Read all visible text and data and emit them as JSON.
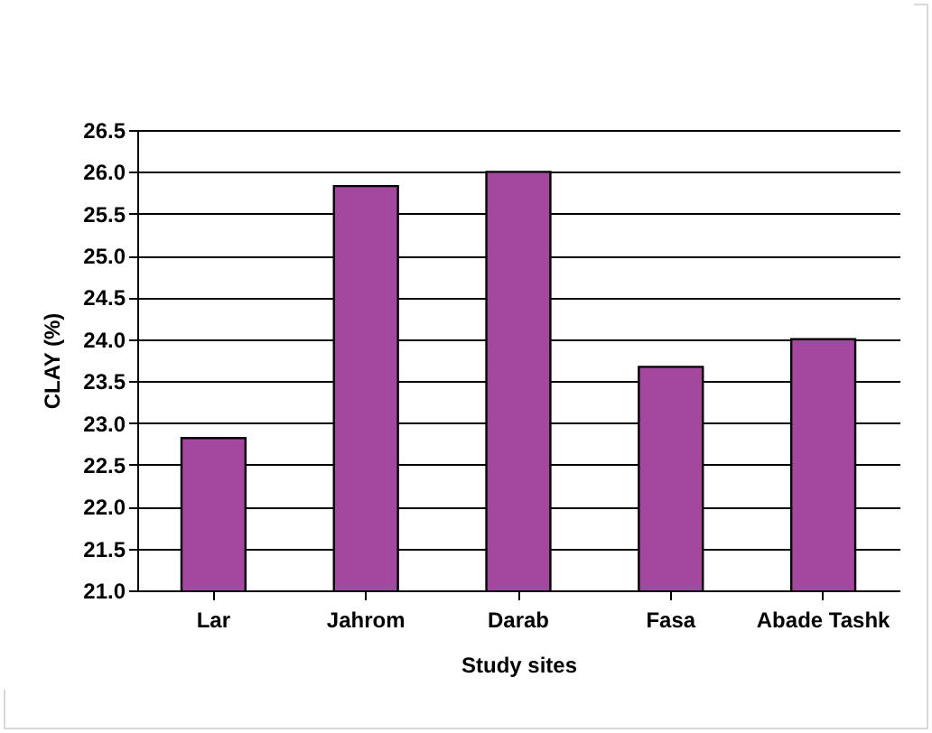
{
  "chart_data": {
    "type": "bar",
    "xlabel": "Study sites",
    "ylabel": "CLAY (%)",
    "categories": [
      "Lar",
      "Jahrom",
      "Darab",
      "Fasa",
      "Abade Tashk"
    ],
    "values": [
      22.82,
      25.83,
      26.0,
      23.67,
      24.0
    ],
    "color": "#a4479f",
    "ylim": [
      21.0,
      26.5
    ],
    "yticks": [
      {
        "value": 21,
        "label": "21.0"
      },
      {
        "value": 21.5,
        "label": "21.5"
      },
      {
        "value": 22,
        "label": "22.0"
      },
      {
        "value": 22.5,
        "label": "22.5"
      },
      {
        "value": 23,
        "label": "23.0"
      },
      {
        "value": 23.5,
        "label": "23.5"
      },
      {
        "value": 24,
        "label": "24.0"
      },
      {
        "value": 24.5,
        "label": "24.5"
      },
      {
        "value": 25,
        "label": "25.0"
      },
      {
        "value": 25.5,
        "label": "25.5"
      },
      {
        "value": 26,
        "label": "26.0"
      },
      {
        "value": 26.5,
        "label": "26.5"
      }
    ],
    "grid": "y"
  }
}
